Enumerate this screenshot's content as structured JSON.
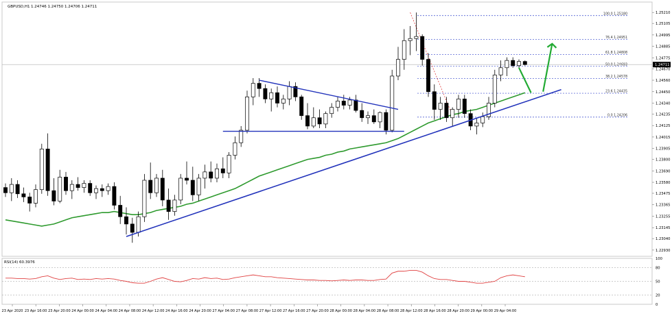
{
  "header": {
    "symbol_label": "GBPUSD,H1",
    "ohlc_text": "1.24746 1.24750 1.24706 1.24711"
  },
  "rsi_label": "RSI(14) 60.3976",
  "colors": {
    "candle": "#000000",
    "ma": "#2e9a2e",
    "trendline": "#2233bb",
    "fib": "#3344cc",
    "rsi": "#e04040",
    "arrow": "#22aa33",
    "projection": "#e04040",
    "grid_dash": "#9a9a9a"
  },
  "chart_data": [
    {
      "type": "candlestick",
      "title": "GBPUSD,H1",
      "y_ticks": [
        "1.25210",
        "1.25105",
        "1.24995",
        "1.24885",
        "1.24775",
        "1.24670",
        "1.24560",
        "1.24450",
        "1.24340",
        "1.24235",
        "1.24125",
        "1.24015",
        "1.23905",
        "1.23800",
        "1.23690",
        "1.23580",
        "1.23475",
        "1.23365",
        "1.23255",
        "1.23145",
        "1.23040",
        "1.22930"
      ],
      "ylim": [
        1.2287,
        1.2531
      ],
      "current_price_label": "1.24711",
      "x_ticks": [
        "23 Apr 2020",
        "23 Apr 16:00",
        "23 Apr 20:00",
        "24 Apr 00:00",
        "24 Apr 04:00",
        "24 Apr 08:00",
        "24 Apr 12:00",
        "24 Apr 16:00",
        "24 Apr 20:00",
        "27 Apr 04:00",
        "27 Apr 08:00",
        "27 Apr 12:00",
        "27 Apr 16:00",
        "27 Apr 20:00",
        "28 Apr 00:00",
        "28 Apr 04:00",
        "28 Apr 08:00",
        "28 Apr 12:00",
        "28 Apr 16:00",
        "28 Apr 20:00",
        "29 Apr 00:00",
        "29 Apr 04:00"
      ],
      "candles": [
        [
          1.2353,
          1.2357,
          1.2344,
          1.2348
        ],
        [
          1.2348,
          1.2362,
          1.234,
          1.2356
        ],
        [
          1.2356,
          1.236,
          1.2343,
          1.2347
        ],
        [
          1.2347,
          1.2353,
          1.2339,
          1.2344
        ],
        [
          1.2344,
          1.2348,
          1.233,
          1.2338
        ],
        [
          1.2338,
          1.2356,
          1.2334,
          1.2351
        ],
        [
          1.2351,
          1.2395,
          1.2347,
          1.239
        ],
        [
          1.239,
          1.2405,
          1.2345,
          1.235
        ],
        [
          1.235,
          1.2362,
          1.2336,
          1.234
        ],
        [
          1.234,
          1.237,
          1.2338,
          1.2363
        ],
        [
          1.2363,
          1.2368,
          1.2346,
          1.235
        ],
        [
          1.235,
          1.236,
          1.2342,
          1.2356
        ],
        [
          1.2356,
          1.2363,
          1.235,
          1.2353
        ],
        [
          1.2353,
          1.236,
          1.2348,
          1.2357
        ],
        [
          1.2357,
          1.236,
          1.2345,
          1.2348
        ],
        [
          1.2348,
          1.2355,
          1.2342,
          1.2352
        ],
        [
          1.2352,
          1.2356,
          1.2344,
          1.235
        ],
        [
          1.235,
          1.2357,
          1.2346,
          1.2354
        ],
        [
          1.2354,
          1.2358,
          1.2332,
          1.2336
        ],
        [
          1.2336,
          1.2345,
          1.2318,
          1.2325
        ],
        [
          1.2325,
          1.2334,
          1.2308,
          1.2318
        ],
        [
          1.2318,
          1.2324,
          1.23,
          1.231
        ],
        [
          1.231,
          1.233,
          1.2306,
          1.2325
        ],
        [
          1.2325,
          1.2366,
          1.232,
          1.236
        ],
        [
          1.236,
          1.2377,
          1.2342,
          1.2348
        ],
        [
          1.2348,
          1.2366,
          1.2344,
          1.2362
        ],
        [
          1.2362,
          1.237,
          1.2335,
          1.2341
        ],
        [
          1.2341,
          1.2352,
          1.2322,
          1.233
        ],
        [
          1.233,
          1.2346,
          1.2326,
          1.2341
        ],
        [
          1.2341,
          1.2366,
          1.2337,
          1.2362
        ],
        [
          1.2362,
          1.2378,
          1.2356,
          1.236
        ],
        [
          1.236,
          1.2373,
          1.234,
          1.2346
        ],
        [
          1.2346,
          1.2366,
          1.234,
          1.2362
        ],
        [
          1.2362,
          1.2375,
          1.2352,
          1.2368
        ],
        [
          1.2368,
          1.2378,
          1.2358,
          1.2362
        ],
        [
          1.2362,
          1.2376,
          1.2358,
          1.2371
        ],
        [
          1.2371,
          1.2382,
          1.2362,
          1.2367
        ],
        [
          1.2367,
          1.2387,
          1.2362,
          1.2384
        ],
        [
          1.2384,
          1.2402,
          1.238,
          1.2396
        ],
        [
          1.2396,
          1.2412,
          1.2392,
          1.2408
        ],
        [
          1.2408,
          1.2446,
          1.2405,
          1.244
        ],
        [
          1.244,
          1.2458,
          1.2432,
          1.2453
        ],
        [
          1.2453,
          1.2458,
          1.244,
          1.2448
        ],
        [
          1.2448,
          1.2452,
          1.2434,
          1.2438
        ],
        [
          1.2438,
          1.2448,
          1.2426,
          1.2444
        ],
        [
          1.2444,
          1.245,
          1.243,
          1.2434
        ],
        [
          1.2434,
          1.2442,
          1.2428,
          1.2438
        ],
        [
          1.2438,
          1.2455,
          1.2432,
          1.245
        ],
        [
          1.245,
          1.2454,
          1.2436,
          1.244
        ],
        [
          1.244,
          1.2442,
          1.2418,
          1.2422
        ],
        [
          1.2422,
          1.2434,
          1.2409,
          1.2412
        ],
        [
          1.2412,
          1.243,
          1.241,
          1.242
        ],
        [
          1.242,
          1.2428,
          1.241,
          1.2414
        ],
        [
          1.2414,
          1.2426,
          1.241,
          1.2424
        ],
        [
          1.2424,
          1.2434,
          1.242,
          1.243
        ],
        [
          1.243,
          1.244,
          1.2426,
          1.2436
        ],
        [
          1.2436,
          1.2442,
          1.2428,
          1.2432
        ],
        [
          1.2432,
          1.244,
          1.2428,
          1.2437
        ],
        [
          1.2437,
          1.2442,
          1.2425,
          1.2427
        ],
        [
          1.2427,
          1.2434,
          1.2416,
          1.242
        ],
        [
          1.242,
          1.2426,
          1.2414,
          1.2422
        ],
        [
          1.2422,
          1.2428,
          1.2414,
          1.2416
        ],
        [
          1.2416,
          1.2426,
          1.241,
          1.2425
        ],
        [
          1.2425,
          1.2428,
          1.2404,
          1.2408
        ],
        [
          1.2408,
          1.2466,
          1.2406,
          1.246
        ],
        [
          1.246,
          1.2488,
          1.2456,
          1.2476
        ],
        [
          1.2476,
          1.2505,
          1.2466,
          1.2494
        ],
        [
          1.2494,
          1.2508,
          1.248,
          1.2496
        ],
        [
          1.2496,
          1.2521,
          1.2484,
          1.2498
        ],
        [
          1.2498,
          1.25,
          1.247,
          1.2476
        ],
        [
          1.2476,
          1.2482,
          1.244,
          1.2445
        ],
        [
          1.2445,
          1.2452,
          1.2418,
          1.2428
        ],
        [
          1.2428,
          1.244,
          1.2418,
          1.2434
        ],
        [
          1.2434,
          1.244,
          1.2416,
          1.242
        ],
        [
          1.242,
          1.243,
          1.2412,
          1.2428
        ],
        [
          1.2428,
          1.2442,
          1.242,
          1.2438
        ],
        [
          1.2438,
          1.2442,
          1.242,
          1.2424
        ],
        [
          1.2424,
          1.2428,
          1.2408,
          1.2412
        ],
        [
          1.2412,
          1.242,
          1.2404,
          1.2415
        ],
        [
          1.2415,
          1.2425,
          1.2411,
          1.2421
        ],
        [
          1.2421,
          1.244,
          1.2418,
          1.2434
        ],
        [
          1.2434,
          1.2466,
          1.243,
          1.2461
        ],
        [
          1.2461,
          1.2475,
          1.2455,
          1.2468
        ],
        [
          1.2468,
          1.2478,
          1.246,
          1.2475
        ],
        [
          1.2475,
          1.2478,
          1.2468,
          1.247
        ],
        [
          1.247,
          1.2476,
          1.2468,
          1.2474
        ],
        [
          1.2474,
          1.2475,
          1.247,
          1.2471
        ]
      ],
      "ma_values": [
        1.2322,
        1.2321,
        1.232,
        1.2319,
        1.2318,
        1.2317,
        1.2316,
        1.2317,
        1.2318,
        1.232,
        1.2322,
        1.2324,
        1.2325,
        1.2326,
        1.2327,
        1.2328,
        1.2329,
        1.2329,
        1.233,
        1.2329,
        1.2328,
        1.2327,
        1.2327,
        1.2328,
        1.2329,
        1.2331,
        1.2332,
        1.2333,
        1.2334,
        1.2335,
        1.2337,
        1.2338,
        1.234,
        1.2342,
        1.2344,
        1.2346,
        1.2348,
        1.235,
        1.2352,
        1.2355,
        1.2358,
        1.2361,
        1.2364,
        1.2366,
        1.2368,
        1.237,
        1.2372,
        1.2374,
        1.2376,
        1.2378,
        1.238,
        1.2381,
        1.2382,
        1.2384,
        1.2385,
        1.2387,
        1.2388,
        1.239,
        1.2391,
        1.2392,
        1.2393,
        1.2394,
        1.2395,
        1.2396,
        1.2398,
        1.24,
        1.2403,
        1.2406,
        1.2409,
        1.2412,
        1.2415,
        1.2417,
        1.2419,
        1.2421,
        1.2423,
        1.2424,
        1.2426,
        1.2427,
        1.2428,
        1.243,
        1.2432,
        1.2434,
        1.2436,
        1.2438,
        1.244,
        1.2442,
        1.2444
      ],
      "fib_levels": [
        {
          "label": "100.0 1.25180",
          "value": 1.2518
        },
        {
          "label": "76.4 1.24951",
          "value": 1.24951
        },
        {
          "label": "61.8 1.24808",
          "value": 1.24808
        },
        {
          "label": "50.0 1.24693",
          "value": 1.24693
        },
        {
          "label": "38.2 1.24578",
          "value": 1.24578
        },
        {
          "label": "23.6 1.24435",
          "value": 1.24435
        },
        {
          "label": "0.0 1.24206",
          "value": 1.24206
        }
      ]
    },
    {
      "type": "line",
      "title": "RSI(14) 60.3976",
      "y_ticks": [
        "100",
        "80",
        "50",
        "20",
        "0"
      ],
      "ylim": [
        0,
        100
      ],
      "values": [
        57,
        57,
        56,
        56,
        55,
        56,
        60,
        62,
        57,
        54,
        56,
        57,
        54,
        55,
        54,
        56,
        55,
        56,
        55,
        52,
        50,
        47,
        46,
        46,
        50,
        55,
        58,
        54,
        50,
        49,
        52,
        56,
        55,
        58,
        56,
        57,
        54,
        55,
        58,
        60,
        62,
        64,
        62,
        60,
        60,
        58,
        57,
        56,
        55,
        54,
        53,
        53,
        52,
        52,
        51,
        52,
        53,
        52,
        53,
        53,
        52,
        52,
        54,
        55,
        68,
        72,
        72,
        74,
        74,
        70,
        62,
        56,
        54,
        54,
        52,
        50,
        50,
        48,
        46,
        46,
        48,
        50,
        58,
        62,
        64,
        62,
        60
      ]
    }
  ]
}
